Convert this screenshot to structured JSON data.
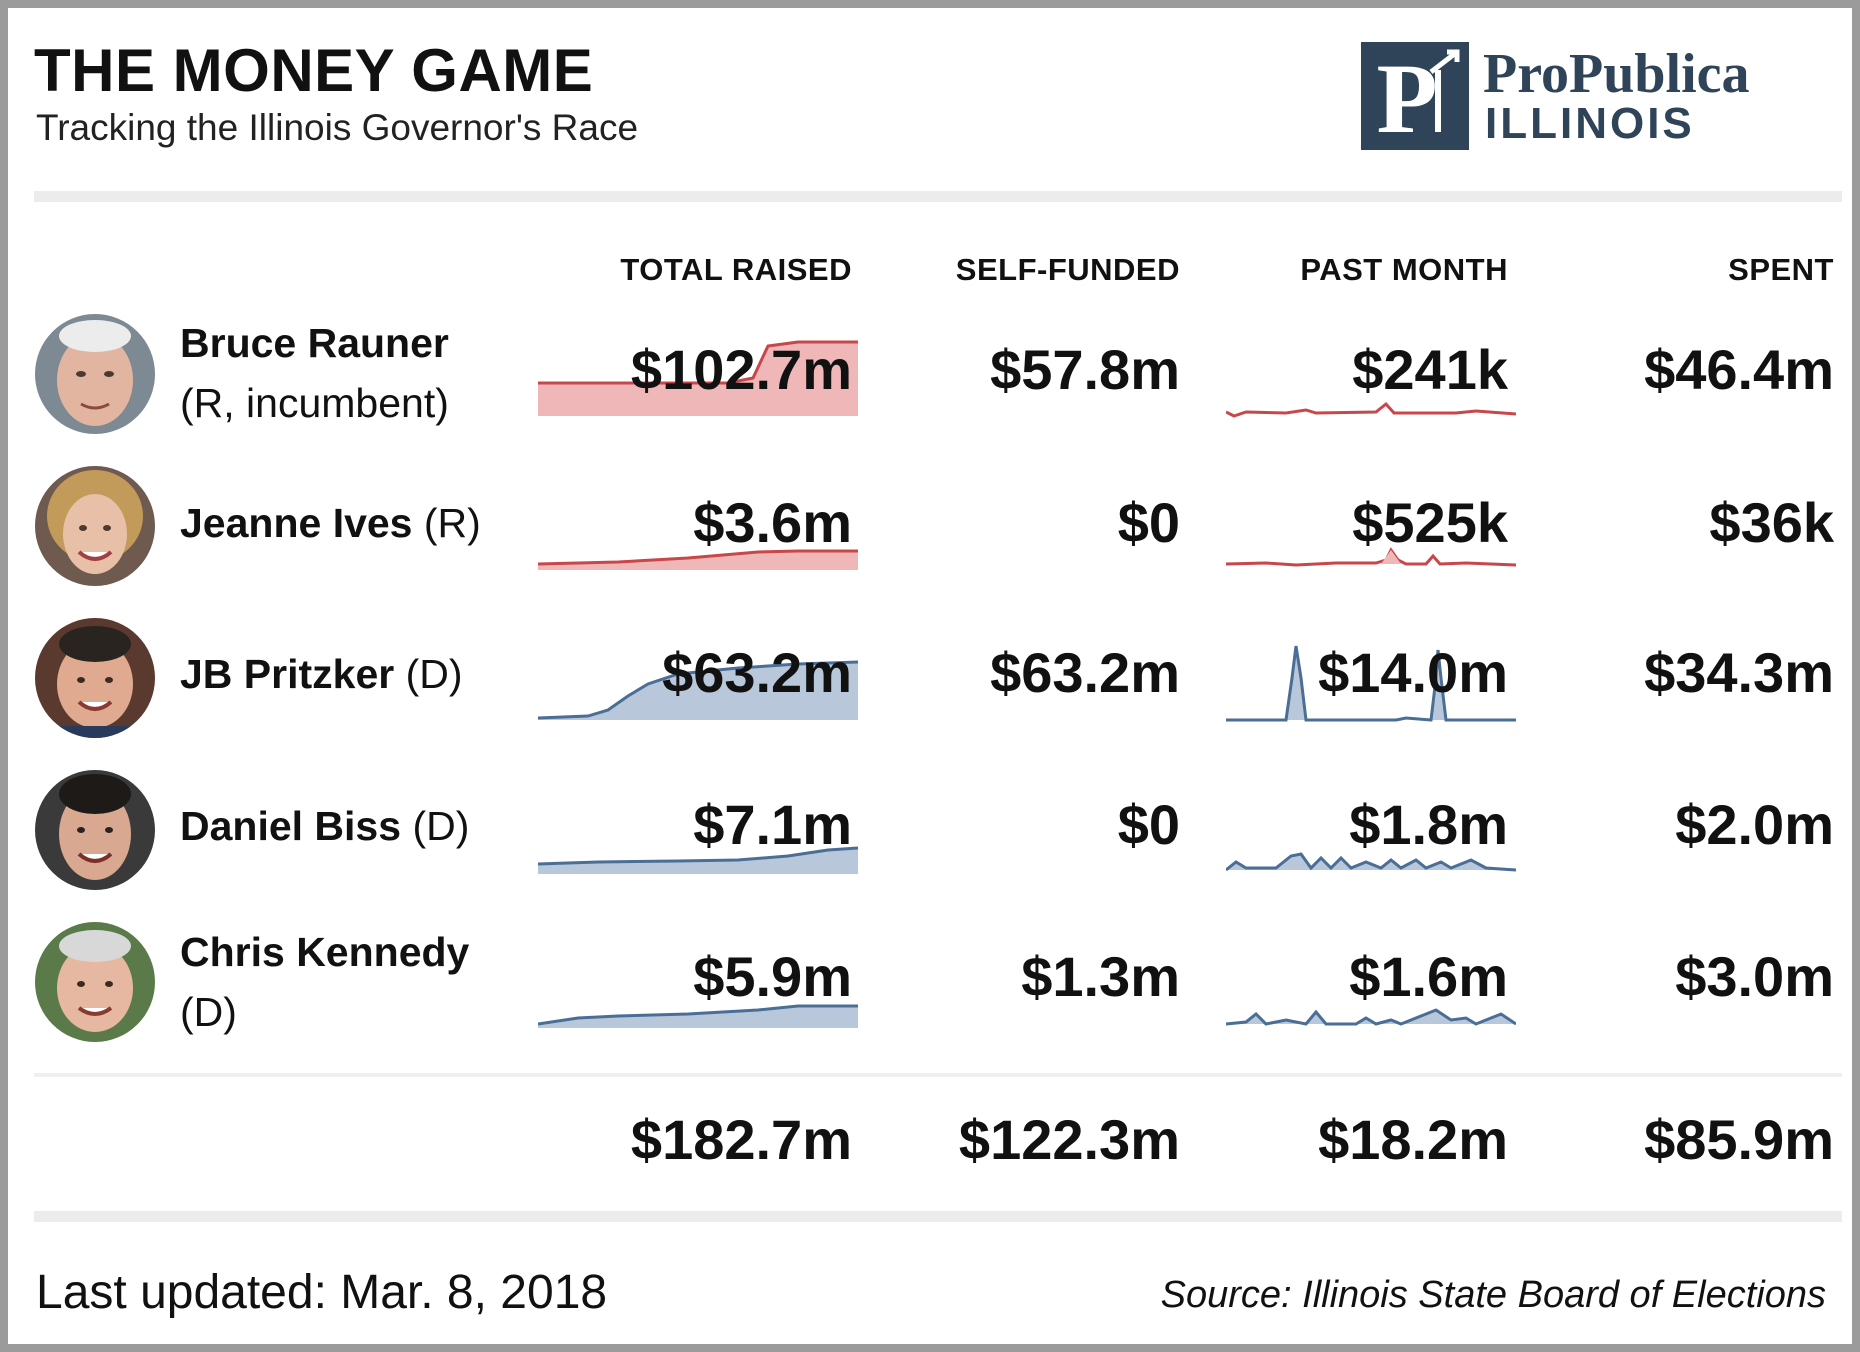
{
  "header": {
    "title": "THE MONEY GAME",
    "subtitle": "Tracking the Illinois Governor's Race",
    "logo_line1": "ProPublica",
    "logo_line2": "ILLINOIS",
    "logo_mark_letter": "P"
  },
  "columns": [
    "TOTAL RAISED",
    "SELF-FUNDED",
    "PAST MONTH",
    "SPENT"
  ],
  "colors": {
    "republican": "#c8474a",
    "republican_fill": "#efb7b7",
    "democrat": "#4a6e96",
    "democrat_fill": "#b8c8da",
    "brand": "#2f4458"
  },
  "candidates": [
    {
      "name": "Bruce Rauner",
      "party": "(R, incumbent)",
      "party_code": "R",
      "total_raised": "$102.7m",
      "self_funded": "$57.8m",
      "past_month": "$241k",
      "spent": "$46.4m"
    },
    {
      "name": "Jeanne Ives",
      "party": "(R)",
      "party_code": "R",
      "total_raised": "$3.6m",
      "self_funded": "$0",
      "past_month": "$525k",
      "spent": "$36k"
    },
    {
      "name": "JB Pritzker",
      "party": "(D)",
      "party_code": "D",
      "total_raised": "$63.2m",
      "self_funded": "$63.2m",
      "past_month": "$14.0m",
      "spent": "$34.3m"
    },
    {
      "name": "Daniel Biss",
      "party": "(D)",
      "party_code": "D",
      "total_raised": "$7.1m",
      "self_funded": "$0",
      "past_month": "$1.8m",
      "spent": "$2.0m"
    },
    {
      "name": "Chris Kennedy",
      "party": "(D)",
      "party_code": "D",
      "total_raised": "$5.9m",
      "self_funded": "$1.3m",
      "past_month": "$1.6m",
      "spent": "$3.0m"
    }
  ],
  "totals": {
    "total_raised": "$182.7m",
    "self_funded": "$122.3m",
    "past_month": "$18.2m",
    "spent": "$85.9m"
  },
  "footer": {
    "updated": "Last updated: Mar. 8, 2018",
    "source": "Source: Illinois State Board of Elections"
  }
}
